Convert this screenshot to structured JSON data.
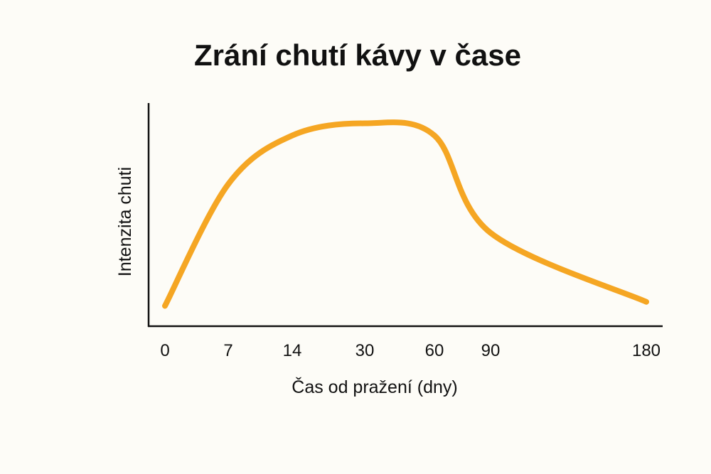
{
  "chart_data": {
    "type": "line",
    "title": "Zrání chutí kávy v čase",
    "xlabel": "Čas od pražení (dny)",
    "ylabel": "Intenzita chuti",
    "x_ticks": [
      "0",
      "7",
      "14",
      "30",
      "60",
      "90",
      "180"
    ],
    "series": [
      {
        "x": [
          "0",
          "7",
          "14",
          "30",
          "60",
          "90",
          "180"
        ],
        "values": [
          0.1,
          0.7,
          0.94,
          1.0,
          0.94,
          0.46,
          0.12
        ]
      }
    ],
    "ylim": [
      0,
      1.1
    ],
    "grid": false,
    "legend": "none",
    "line_color": "#f5a623",
    "axis_color": "#111111"
  }
}
